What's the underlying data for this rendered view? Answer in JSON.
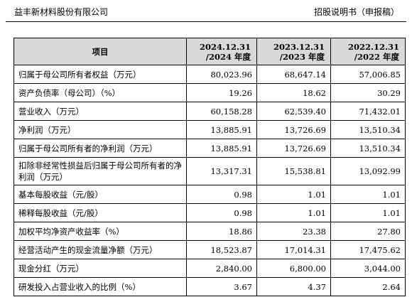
{
  "header": {
    "company": "益丰新材料股份有限公司",
    "doc_title": "招股说明书（申报稿）"
  },
  "table": {
    "columns": [
      {
        "l1": "项目",
        "l2": ""
      },
      {
        "l1": "2024.12.31",
        "l2": "/2024 年度"
      },
      {
        "l1": "2023.12.31",
        "l2": "/2023 年度"
      },
      {
        "l1": "2022.12.31",
        "l2": "/2022 年度"
      }
    ],
    "rows": [
      {
        "label": "归属于母公司所有者权益（万元）",
        "v": [
          "80,023.96",
          "68,647.14",
          "57,006.85"
        ]
      },
      {
        "label": "资产负债率（母公司）（%）",
        "v": [
          "19.26",
          "18.62",
          "30.29"
        ]
      },
      {
        "label": "营业收入（万元）",
        "v": [
          "60,158.28",
          "62,539.40",
          "71,432.01"
        ]
      },
      {
        "label": "净利润（万元）",
        "v": [
          "13,885.91",
          "13,726.69",
          "13,510.34"
        ]
      },
      {
        "label": "归属于母公司所有者的净利润（万元）",
        "v": [
          "13,885.91",
          "13,726.69",
          "13,510.34"
        ]
      },
      {
        "label": "扣除非经常性损益后归属于母公司所有者的净利润（万元）",
        "v": [
          "13,317.31",
          "15,538.81",
          "13,092.99"
        ]
      },
      {
        "label": "基本每股收益（元/股）",
        "v": [
          "0.98",
          "1.01",
          "1.01"
        ]
      },
      {
        "label": "稀释每股收益（元/股）",
        "v": [
          "0.98",
          "1.01",
          "1.01"
        ]
      },
      {
        "label": "加权平均净资产收益率（%）",
        "v": [
          "18.86",
          "23.38",
          "27.80"
        ]
      },
      {
        "label": "经营活动产生的现金流量净额（万元）",
        "v": [
          "18,523.87",
          "17,014.31",
          "17,475.62"
        ]
      },
      {
        "label": "现金分红（万元）",
        "v": [
          "2,840.00",
          "6,800.00",
          "3,044.00"
        ]
      },
      {
        "label": "研发投入占营业收入的比例（%）",
        "v": [
          "3.67",
          "4.37",
          "2.64"
        ]
      }
    ]
  }
}
